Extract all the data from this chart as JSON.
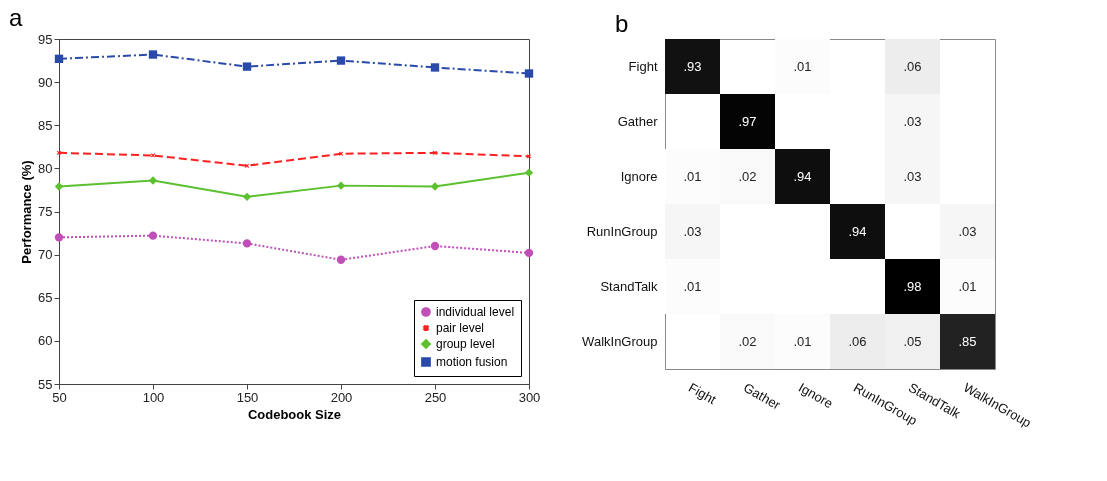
{
  "chart_data": [
    {
      "type": "line",
      "title": "a",
      "xlabel": "Codebook Size",
      "ylabel": "Performance (%)",
      "x": [
        50,
        100,
        150,
        200,
        250,
        300
      ],
      "series": [
        {
          "name": "individual level",
          "color": "#c050b8",
          "marker": "circle",
          "line_style": "dotted",
          "values": [
            72.0,
            72.2,
            71.3,
            69.4,
            71.0,
            70.2
          ]
        },
        {
          "name": "pair level",
          "color": "#ff2020",
          "marker": "cross",
          "line_style": "dashed",
          "values": [
            81.8,
            81.5,
            80.3,
            81.7,
            81.8,
            81.4
          ]
        },
        {
          "name": "group level",
          "color": "#5cc030",
          "marker": "diamond",
          "line_style": "solid",
          "values": [
            77.9,
            78.6,
            76.7,
            78.0,
            77.9,
            79.5
          ]
        },
        {
          "name": "motion fusion",
          "color": "#2a4aaa",
          "marker": "square",
          "line_style": "dashdot",
          "values": [
            92.7,
            93.2,
            91.8,
            92.5,
            91.7,
            91.0
          ]
        }
      ],
      "xlim": [
        50,
        300
      ],
      "ylim": [
        55,
        95
      ],
      "xticks": [
        50,
        100,
        150,
        200,
        250,
        300
      ],
      "yticks": [
        55,
        60,
        65,
        70,
        75,
        80,
        85,
        90,
        95
      ],
      "grid": false,
      "legend": "bottom right"
    },
    {
      "type": "heatmap",
      "title": "b",
      "categories": [
        "Fight",
        "Gather",
        "Ignore",
        "RunInGroup",
        "StandTalk",
        "WalkInGroup"
      ],
      "y_categories": [
        "Fight",
        "Gather",
        "Ignore",
        "RunInGroup",
        "StandTalk",
        "WalkInGroup"
      ],
      "cells": [
        [
          0.93,
          null,
          0.01,
          null,
          0.06,
          null
        ],
        [
          null,
          0.97,
          null,
          null,
          0.03,
          null
        ],
        [
          0.01,
          0.02,
          0.94,
          null,
          0.03,
          null
        ],
        [
          0.03,
          null,
          null,
          0.94,
          null,
          0.03
        ],
        [
          0.01,
          null,
          null,
          null,
          0.98,
          0.01
        ],
        [
          null,
          0.02,
          0.01,
          0.06,
          0.05,
          0.85
        ]
      ],
      "cell_labels": [
        [
          ".93",
          null,
          ".01",
          null,
          ".06",
          null
        ],
        [
          null,
          ".97",
          null,
          null,
          ".03",
          null
        ],
        [
          ".01",
          ".02",
          ".94",
          null,
          ".03",
          null
        ],
        [
          ".03",
          null,
          null,
          ".94",
          null,
          ".03"
        ],
        [
          ".01",
          null,
          null,
          null,
          ".98",
          ".01"
        ],
        [
          null,
          ".02",
          ".01",
          ".06",
          ".05",
          ".85"
        ]
      ]
    }
  ]
}
